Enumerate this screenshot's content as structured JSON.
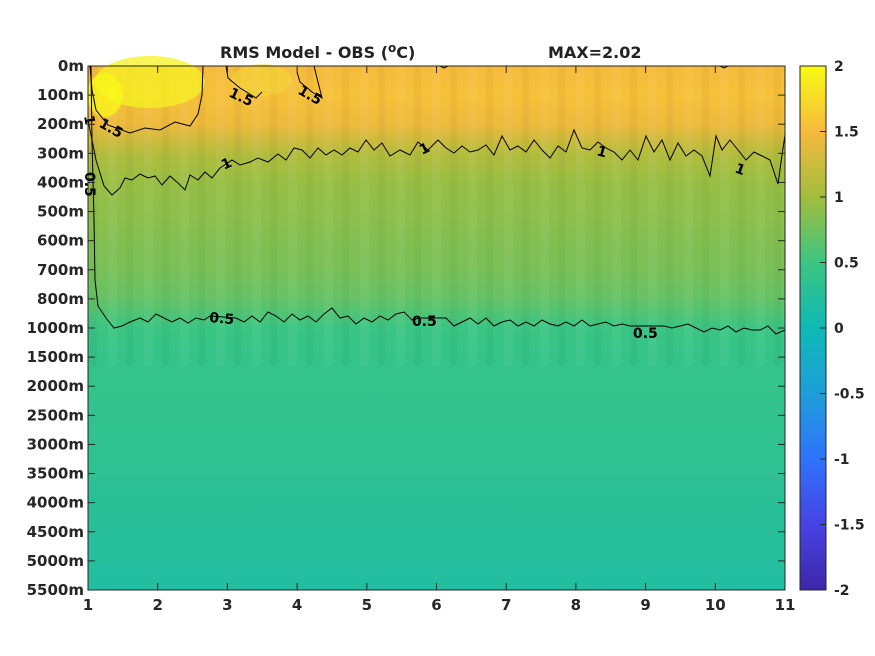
{
  "chart_data": {
    "type": "heatmap",
    "title": "RMS Model - OBS (",
    "title_unit_sup": "o",
    "title_unit_rest": "C)",
    "max_label": "MAX=2.02",
    "x": [
      1,
      2,
      3,
      4,
      5,
      6,
      7,
      8,
      9,
      10,
      11
    ],
    "xlim": [
      1,
      11
    ],
    "x_tick_labels": [
      "1",
      "2",
      "3",
      "4",
      "5",
      "6",
      "7",
      "8",
      "9",
      "10",
      "11"
    ],
    "y_tick_labels": [
      "0m",
      "100m",
      "200m",
      "300m",
      "400m",
      "500m",
      "600m",
      "700m",
      "800m",
      "1000m",
      "1500m",
      "2000m",
      "2500m",
      "3000m",
      "3500m",
      "4000m",
      "4500m",
      "5000m",
      "5500m"
    ],
    "colorbar": {
      "range": [
        -2,
        2
      ],
      "tick_labels": [
        "2",
        "1.5",
        "1",
        "0.5",
        "0",
        "-0.5",
        "-1",
        "-1.5",
        "-2"
      ],
      "colormap": "parula"
    },
    "depth_profile_rms": [
      1.5,
      1.55,
      1.45,
      1.1,
      0.95,
      0.9,
      0.85,
      0.8,
      0.7,
      0.48,
      0.42,
      0.4,
      0.38,
      0.36,
      0.33,
      0.3,
      0.27,
      0.24,
      0.2
    ],
    "contour_levels": [
      "0.5",
      "1",
      "1.5"
    ],
    "contour_labels": [
      {
        "text": "1.5",
        "x": 3.2,
        "depth": "100m"
      },
      {
        "text": "1.5",
        "x": 4.2,
        "depth": "100m"
      },
      {
        "text": "1.5",
        "x": 1.3,
        "depth": "200m"
      },
      {
        "text": "1",
        "x": 1.02,
        "depth": "200m"
      },
      {
        "text": "1",
        "x": 3.0,
        "depth": "300m"
      },
      {
        "text": "1",
        "x": 5.85,
        "depth": "300m"
      },
      {
        "text": "1",
        "x": 8.35,
        "depth": "300m"
      },
      {
        "text": "1",
        "x": 10.3,
        "depth": "400m"
      },
      {
        "text": "0.5",
        "x": 1.02,
        "depth": "400m"
      },
      {
        "text": "0.5",
        "x": 3.0,
        "depth": "1000m"
      },
      {
        "text": "0.5",
        "x": 5.85,
        "depth": "1000m"
      },
      {
        "text": "0.5",
        "x": 8.85,
        "depth": "1000m"
      }
    ]
  }
}
